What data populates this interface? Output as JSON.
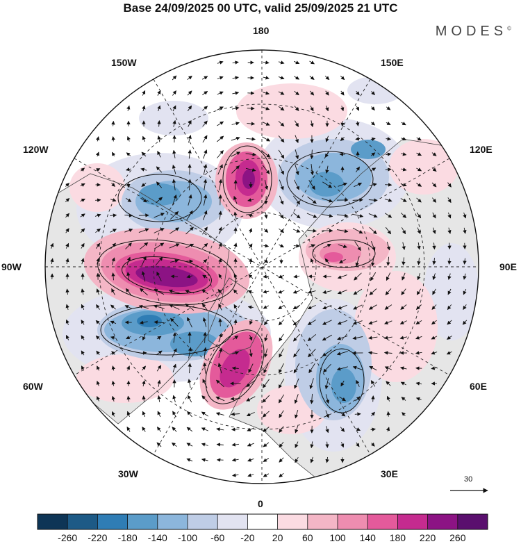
{
  "title": "Base 24/09/2025 00 UTC, valid 25/09/2025 21 UTC",
  "brand": "MODES",
  "brand_mark": "©",
  "longitude_labels": {
    "n": "180",
    "s": "0",
    "e": "90E",
    "w": "90W",
    "ne1": "150E",
    "ne2": "120E",
    "se1": "60E",
    "se2": "30E",
    "nw1": "150W",
    "nw2": "120W",
    "sw1": "60W",
    "sw2": "30W"
  },
  "reference_vector": "30",
  "colorbar": {
    "ticks": [
      "-260",
      "-220",
      "-180",
      "-140",
      "-100",
      "-60",
      "-20",
      "20",
      "60",
      "100",
      "140",
      "180",
      "220",
      "260"
    ],
    "colors": [
      "#0e3556",
      "#1d5a86",
      "#2f7db5",
      "#5b9cc9",
      "#8cb6dc",
      "#bfcde6",
      "#e2e3f1",
      "#ffffff",
      "#fbdbe2",
      "#f4b6c6",
      "#ee8db0",
      "#e45a9b",
      "#c52b8f",
      "#8c1384",
      "#5a0f6e"
    ]
  },
  "map_colors": {
    "land": "#e6e6e6",
    "ocean": "#ffffff",
    "neg1": "#e2e3f1",
    "neg2": "#bfcde6",
    "neg3": "#8cb6dc",
    "neg4": "#5b9cc9",
    "neg5": "#2f7db5",
    "neg6": "#1d5a86",
    "pos1": "#fbdbe2",
    "pos2": "#f4b6c6",
    "pos3": "#ee8db0",
    "pos4": "#e45a9b",
    "pos5": "#c52b8f",
    "pos6": "#8c1384"
  }
}
